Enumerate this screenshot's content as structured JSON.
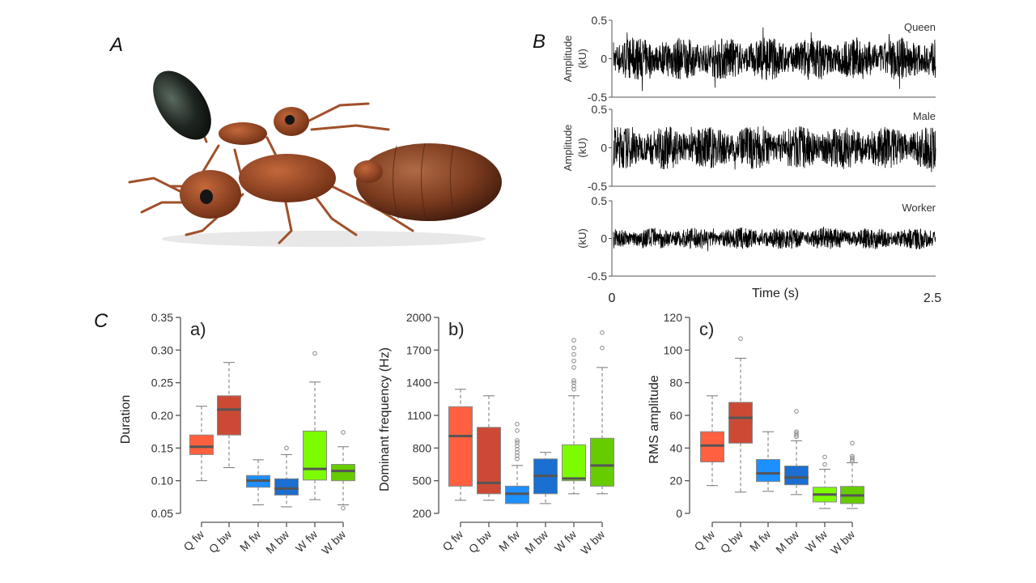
{
  "panel_labels": {
    "a": "A",
    "b": "B",
    "c": "C"
  },
  "photo": {
    "subject": "ant-mating-photo"
  },
  "chart_data": [
    {
      "type": "line",
      "panel": "B",
      "xlabel": "Time (s)",
      "xlim": [
        0,
        2.5
      ],
      "x_tick_labels": [
        "0",
        "2.5"
      ],
      "series": [
        {
          "name": "Queen",
          "ylabel": "Amplitude (kU)",
          "ylim": [
            -0.5,
            0.5
          ],
          "y_tick_labels": [
            "0.5",
            "0",
            "-0.5"
          ],
          "peak_amplitude": 0.35
        },
        {
          "name": "Male",
          "ylabel": "Amplitude (kU)",
          "ylim": [
            -0.5,
            0.5
          ],
          "y_tick_labels": [
            "0.5",
            "0",
            "-0.5"
          ],
          "peak_amplitude": 0.35
        },
        {
          "name": "Worker",
          "ylabel": "(kU)",
          "ylim": [
            -0.5,
            0.5
          ],
          "y_tick_labels": [
            "0.5",
            "0",
            "-0.5"
          ],
          "peak_amplitude": 0.18
        }
      ]
    },
    {
      "type": "box",
      "title": "a)",
      "ylabel": "Duration",
      "ylim": [
        0.05,
        0.35
      ],
      "y_ticks": [
        "0.05",
        "0.10",
        "0.15",
        "0.20",
        "0.25",
        "0.30",
        "0.35"
      ],
      "categories": [
        "Q fw",
        "Q bw",
        "M fw",
        "M bw",
        "W fw",
        "W bw"
      ],
      "colors": [
        "#ff6040",
        "#cc4a35",
        "#1e8fff",
        "#1a6fd0",
        "#7dfc00",
        "#66cc00"
      ],
      "boxes": [
        {
          "whisker_low": 0.1,
          "q1": 0.14,
          "median": 0.152,
          "q3": 0.17,
          "whisker_high": 0.214,
          "outliers": []
        },
        {
          "whisker_low": 0.12,
          "q1": 0.17,
          "median": 0.209,
          "q3": 0.23,
          "whisker_high": 0.281,
          "outliers": []
        },
        {
          "whisker_low": 0.063,
          "q1": 0.09,
          "median": 0.1,
          "q3": 0.108,
          "whisker_high": 0.132,
          "outliers": []
        },
        {
          "whisker_low": 0.06,
          "q1": 0.078,
          "median": 0.088,
          "q3": 0.103,
          "whisker_high": 0.14,
          "outliers": [
            0.15
          ]
        },
        {
          "whisker_low": 0.071,
          "q1": 0.101,
          "median": 0.118,
          "q3": 0.176,
          "whisker_high": 0.251,
          "outliers": [
            0.295
          ]
        },
        {
          "whisker_low": 0.063,
          "q1": 0.1,
          "median": 0.115,
          "q3": 0.125,
          "whisker_high": 0.152,
          "outliers": [
            0.174,
            0.058
          ]
        }
      ]
    },
    {
      "type": "box",
      "title": "b)",
      "ylabel": "Dominant frequency (Hz)",
      "ylim": [
        200,
        2000
      ],
      "y_ticks": [
        "200",
        "500",
        "800",
        "1100",
        "1400",
        "1700",
        "2000"
      ],
      "categories": [
        "Q fw",
        "Q bw",
        "M fw",
        "M bw",
        "W fw",
        "W bw"
      ],
      "colors": [
        "#ff6040",
        "#cc4a35",
        "#1e8fff",
        "#1a6fd0",
        "#7dfc00",
        "#66cc00"
      ],
      "boxes": [
        {
          "whisker_low": 320,
          "q1": 450,
          "median": 910,
          "q3": 1180,
          "whisker_high": 1340,
          "outliers": []
        },
        {
          "whisker_low": 320,
          "q1": 380,
          "median": 480,
          "q3": 990,
          "whisker_high": 1280,
          "outliers": []
        },
        {
          "whisker_low": 290,
          "q1": 290,
          "median": 380,
          "q3": 450,
          "whisker_high": 640,
          "outliers": [
            700,
            730,
            760,
            790,
            820,
            850,
            870,
            960,
            1020
          ]
        },
        {
          "whisker_low": 290,
          "q1": 380,
          "median": 545,
          "q3": 700,
          "whisker_high": 760,
          "outliers": []
        },
        {
          "whisker_low": 380,
          "q1": 500,
          "median": 520,
          "q3": 830,
          "whisker_high": 1280,
          "outliers": [
            1340,
            1370,
            1400,
            1420,
            1540,
            1600,
            1660,
            1720,
            1790
          ]
        },
        {
          "whisker_low": 380,
          "q1": 450,
          "median": 640,
          "q3": 890,
          "whisker_high": 1540,
          "outliers": [
            1720,
            1860
          ]
        }
      ]
    },
    {
      "type": "box",
      "title": "c)",
      "ylabel": "RMS amplitude",
      "ylim": [
        0,
        120
      ],
      "y_ticks": [
        "0",
        "20",
        "40",
        "60",
        "80",
        "100",
        "120"
      ],
      "categories": [
        "Q fw",
        "Q bw",
        "M fw",
        "M bw",
        "W fw",
        "W bw"
      ],
      "colors": [
        "#ff6040",
        "#cc4a35",
        "#1e8fff",
        "#1a6fd0",
        "#7dfc00",
        "#66cc00"
      ],
      "boxes": [
        {
          "whisker_low": 17,
          "q1": 31.5,
          "median": 41.5,
          "q3": 50,
          "whisker_high": 72,
          "outliers": []
        },
        {
          "whisker_low": 13,
          "q1": 43,
          "median": 58.5,
          "q3": 68,
          "whisker_high": 95,
          "outliers": [
            107
          ]
        },
        {
          "whisker_low": 13.5,
          "q1": 19.5,
          "median": 24.5,
          "q3": 33,
          "whisker_high": 50,
          "outliers": []
        },
        {
          "whisker_low": 11.5,
          "q1": 17.5,
          "median": 22,
          "q3": 29,
          "whisker_high": 44.5,
          "outliers": [
            47,
            48,
            49,
            50,
            62.5
          ]
        },
        {
          "whisker_low": 3,
          "q1": 7,
          "median": 11.5,
          "q3": 16,
          "whisker_high": 27,
          "outliers": [
            30,
            34.5
          ]
        },
        {
          "whisker_low": 3,
          "q1": 6,
          "median": 11,
          "q3": 16.5,
          "whisker_high": 31,
          "outliers": [
            32,
            33,
            34,
            35,
            43
          ]
        }
      ]
    }
  ]
}
